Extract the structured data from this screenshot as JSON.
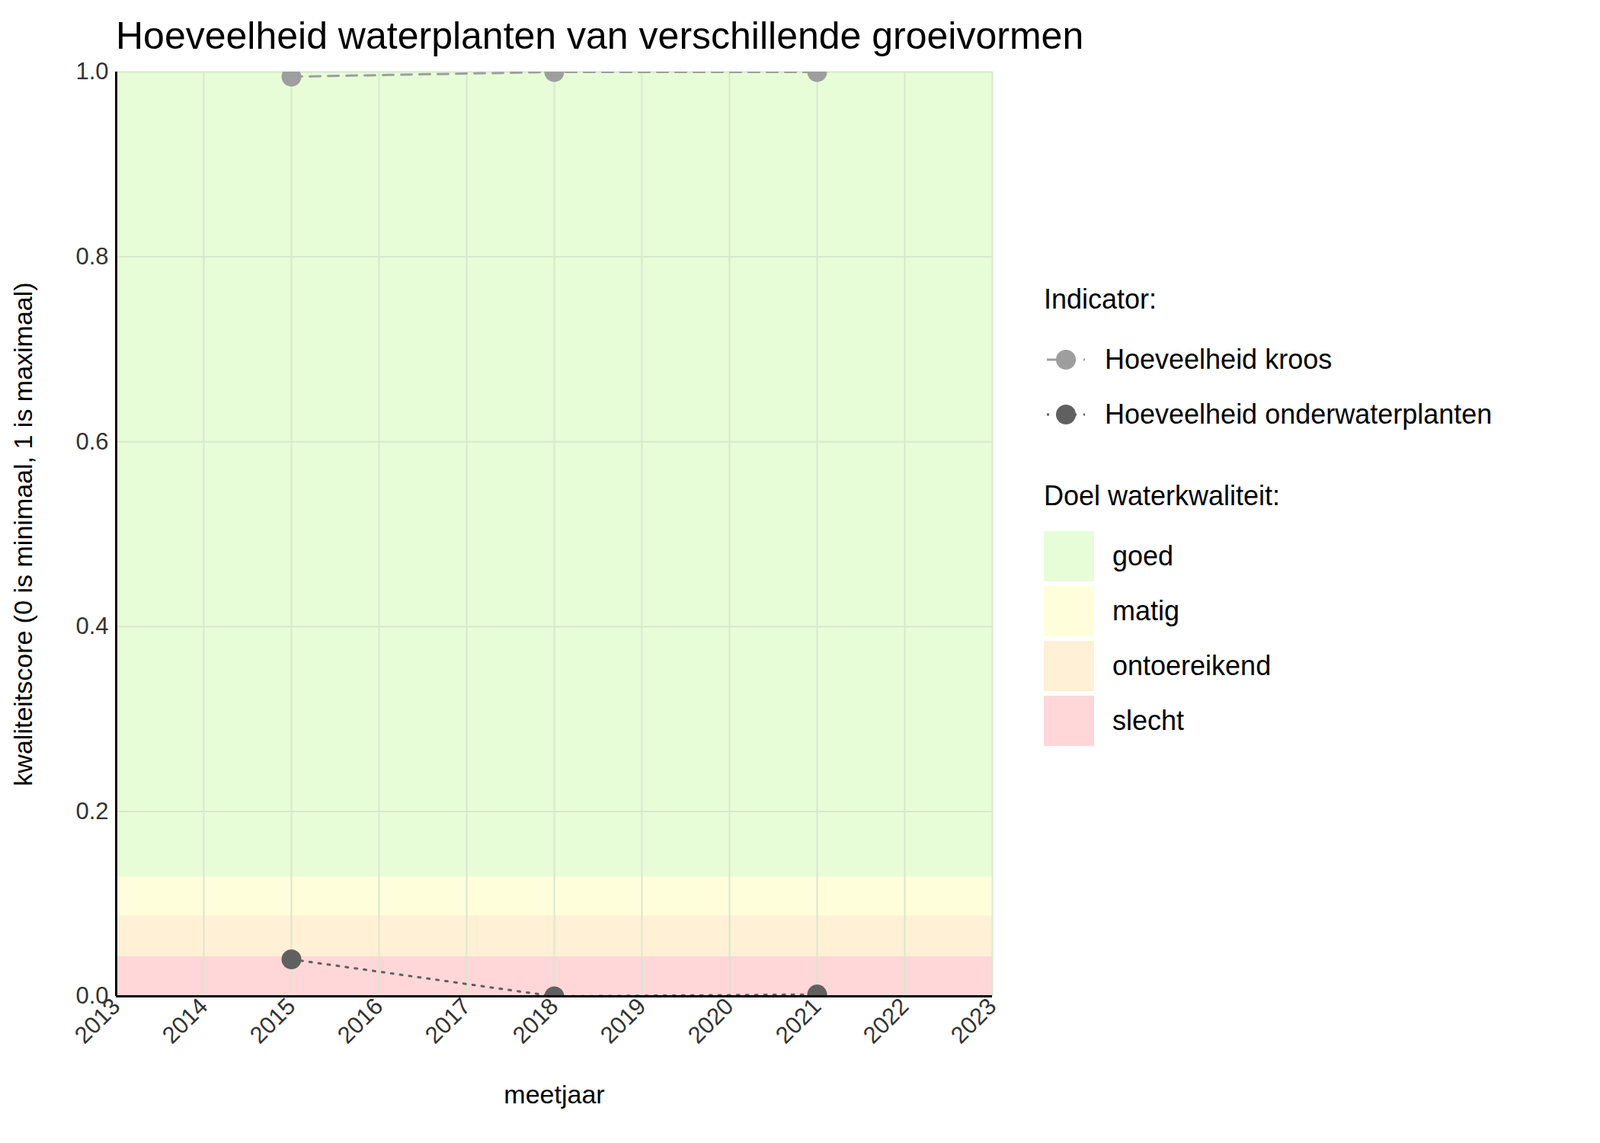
{
  "chart_data": {
    "type": "line",
    "title": "Hoeveelheid waterplanten van verschillende groeivormen",
    "x_label": "meetjaar",
    "y_label": "kwaliteitscore (0 is minimaal, 1 is maximaal)",
    "x": [
      2015,
      2018,
      2021
    ],
    "series": [
      {
        "name": "Hoeveelheid kroos",
        "color": "#9e9e9e",
        "line_style": "dashed",
        "marker": "circle",
        "values": [
          0.995,
          1.0,
          1.0
        ]
      },
      {
        "name": "Hoeveelheid onderwaterplanten",
        "color": "#606060",
        "line_style": "dotted",
        "marker": "circle",
        "values": [
          0.04,
          0.0,
          0.002
        ]
      }
    ],
    "legend_title": "Indicator:",
    "bands_title": "Doel waterkwaliteit:",
    "bands": [
      {
        "name": "goed",
        "color": "#e7fdd8",
        "from": 0.129,
        "to": 1.0
      },
      {
        "name": "matig",
        "color": "#fffedb",
        "from": 0.087,
        "to": 0.129
      },
      {
        "name": "ontoereikend",
        "color": "#fff0d6",
        "from": 0.043,
        "to": 0.087
      },
      {
        "name": "slecht",
        "color": "#ffd7d8",
        "from": 0.0,
        "to": 0.043
      }
    ],
    "xlim": [
      2013,
      2023
    ],
    "xticks": [
      2013,
      2014,
      2015,
      2016,
      2017,
      2018,
      2019,
      2020,
      2021,
      2022,
      2023
    ],
    "ylim": [
      0,
      1
    ],
    "yticks": [
      {
        "value": 0,
        "label": "0.0"
      },
      {
        "value": 0.2,
        "label": "0.2"
      },
      {
        "value": 0.4,
        "label": "0.4"
      },
      {
        "value": 0.6,
        "label": "0.6"
      },
      {
        "value": 0.8,
        "label": "0.8"
      },
      {
        "value": 1,
        "label": "1.0"
      }
    ],
    "grid": true,
    "legend": "right"
  }
}
